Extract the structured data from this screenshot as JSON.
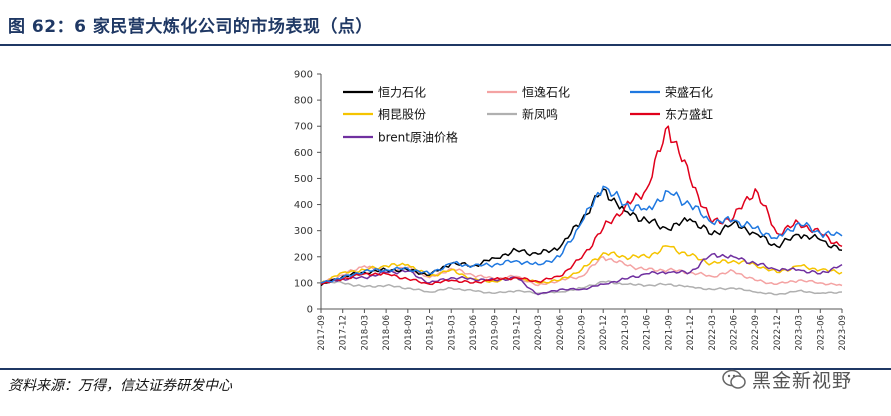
{
  "header": {
    "title": "图 62：6 家民营大炼化公司的市场表现（点）"
  },
  "footer": {
    "source": "资料来源：万得，信达证券研发中心",
    "watermark_text": "黑金新视野"
  },
  "chart_data": {
    "type": "line",
    "title": "",
    "xlabel": "",
    "ylabel": "",
    "ylim": [
      0,
      900
    ],
    "yticks": [
      0,
      100,
      200,
      300,
      400,
      500,
      600,
      700,
      800,
      900
    ],
    "xticks": [
      "2017-09",
      "2017-12",
      "2018-03",
      "2018-06",
      "2018-09",
      "2018-12",
      "2019-03",
      "2019-06",
      "2019-09",
      "2019-12",
      "2020-03",
      "2020-06",
      "2020-09",
      "2020-12",
      "2021-03",
      "2021-06",
      "2021-09",
      "2021-12",
      "2022-03",
      "2022-06",
      "2022-09",
      "2022-12",
      "2023-03",
      "2023-06",
      "2023-09"
    ],
    "x": [
      "2017-09",
      "2017-12",
      "2018-03",
      "2018-06",
      "2018-09",
      "2018-12",
      "2019-03",
      "2019-06",
      "2019-09",
      "2019-12",
      "2020-03",
      "2020-06",
      "2020-09",
      "2020-12",
      "2021-03",
      "2021-06",
      "2021-09",
      "2021-12",
      "2022-03",
      "2022-06",
      "2022-09",
      "2022-12",
      "2023-03",
      "2023-06",
      "2023-09"
    ],
    "grid": false,
    "legend": "top-left",
    "series": [
      {
        "name": "恒力石化",
        "color": "#000000",
        "values": [
          90,
          125,
          140,
          150,
          150,
          130,
          175,
          165,
          195,
          225,
          210,
          235,
          340,
          460,
          375,
          340,
          305,
          345,
          285,
          330,
          290,
          240,
          285,
          265,
          225
        ]
      },
      {
        "name": "恒逸石化",
        "color": "#f4a3a3",
        "values": [
          100,
          130,
          165,
          140,
          160,
          120,
          155,
          130,
          115,
          125,
          90,
          110,
          125,
          200,
          170,
          150,
          150,
          140,
          125,
          145,
          110,
          95,
          110,
          100,
          90
        ]
      },
      {
        "name": "荣盛石化",
        "color": "#1f78e0",
        "values": [
          100,
          120,
          145,
          150,
          155,
          135,
          175,
          165,
          170,
          185,
          170,
          200,
          330,
          470,
          400,
          380,
          450,
          400,
          330,
          340,
          310,
          270,
          330,
          290,
          280
        ]
      },
      {
        "name": "桐昆股份",
        "color": "#f5c400",
        "values": [
          100,
          140,
          150,
          165,
          170,
          125,
          150,
          115,
          105,
          120,
          100,
          110,
          150,
          215,
          200,
          200,
          240,
          205,
          175,
          185,
          170,
          140,
          165,
          150,
          140
        ]
      },
      {
        "name": "新凤鸣",
        "color": "#b0b0b0",
        "values": [
          105,
          100,
          85,
          90,
          80,
          65,
          80,
          70,
          60,
          70,
          60,
          65,
          80,
          105,
          95,
          90,
          95,
          85,
          75,
          80,
          65,
          55,
          70,
          60,
          65
        ]
      },
      {
        "name": "东方盛虹",
        "color": "#e0001b",
        "values": [
          95,
          115,
          135,
          135,
          115,
          95,
          110,
          100,
          115,
          120,
          105,
          125,
          195,
          310,
          390,
          460,
          700,
          500,
          330,
          350,
          460,
          290,
          330,
          290,
          240
        ]
      },
      {
        "name": "brent原油价格",
        "color": "#7030a0",
        "values": [
          100,
          115,
          120,
          140,
          145,
          100,
          120,
          115,
          110,
          120,
          55,
          75,
          75,
          95,
          115,
          135,
          140,
          140,
          210,
          200,
          175,
          150,
          150,
          135,
          170
        ]
      }
    ]
  }
}
